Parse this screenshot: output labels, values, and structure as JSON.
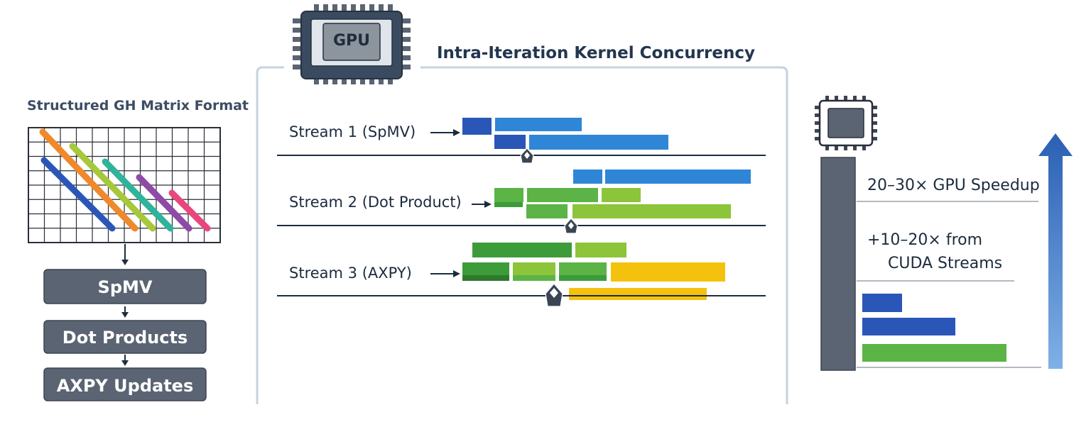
{
  "colors": {
    "blue_dark": "#2a56b8",
    "blue": "#2f86d6",
    "green_dark": "#3c9c3a",
    "green": "#5cb346",
    "green_light": "#8cc43a",
    "yellow": "#f4c20d",
    "slate": "#5a6472",
    "panel_border": "#c7d3e0"
  },
  "left_panel": {
    "title": "Structured GH Matrix Format",
    "steps": [
      "SpMV",
      "Dot Products",
      "AXPY Updates"
    ]
  },
  "center_panel": {
    "gpu_chip_label": "GPU",
    "title": "Intra-Iteration Kernel Concurrency",
    "streams": [
      {
        "label": "Stream 1 (SpMV)"
      },
      {
        "label": "Stream 2 (Dot Product)"
      },
      {
        "label": "Stream 3 (AXPY)"
      }
    ]
  },
  "right_panel": {
    "speedup_label": "20–30× GPU Speedup",
    "streams_line1": "+10–20× from",
    "streams_line2": "CUDA Streams"
  }
}
